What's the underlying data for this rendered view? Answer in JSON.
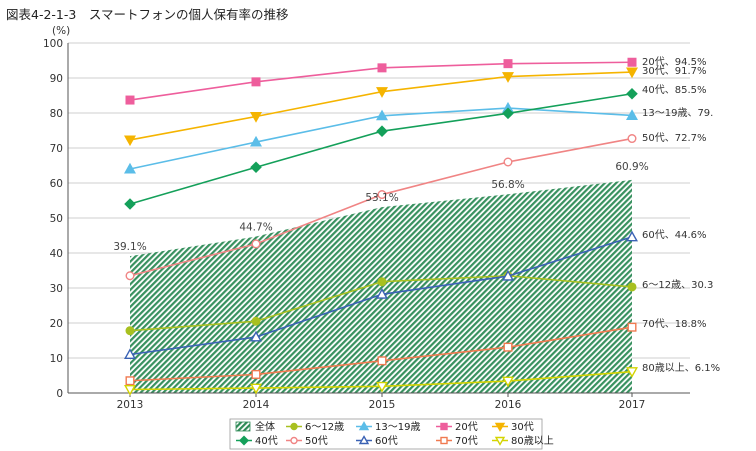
{
  "chart_data": {
    "type": "line",
    "title": "図表4-2-1-3　スマートフォンの個人保有率の推移",
    "ylabel": "(%)",
    "x": [
      "2013",
      "2014",
      "2015",
      "2016",
      "2017"
    ],
    "ylim": [
      0,
      100
    ],
    "yticks": [
      0,
      10,
      20,
      30,
      40,
      50,
      60,
      70,
      80,
      90,
      100
    ],
    "grid": true,
    "legend_position": "bottom",
    "area": {
      "name": "全体",
      "values": [
        39.1,
        44.7,
        53.1,
        56.8,
        60.9
      ],
      "labels": [
        "39.1%",
        "44.7%",
        "53.1%",
        "56.8%",
        "60.9%"
      ],
      "color": "#2e8b57"
    },
    "series": [
      {
        "name": "6～12歳",
        "values": [
          17.8,
          20.5,
          31.8,
          33.5,
          30.3
        ],
        "color": "#a8c020",
        "marker": "circle-filled",
        "end_label": "6～12歳、30.3"
      },
      {
        "name": "13～19歳",
        "values": [
          64.0,
          71.7,
          79.2,
          81.4,
          79.3
        ],
        "color": "#5bbde8",
        "marker": "triangle-filled",
        "end_label": "13～19歳、79."
      },
      {
        "name": "20代",
        "values": [
          83.7,
          88.9,
          92.9,
          94.1,
          94.5
        ],
        "color": "#ee5e9c",
        "marker": "square-filled",
        "end_label": "20代、94.5%"
      },
      {
        "name": "30代",
        "values": [
          72.3,
          79.0,
          86.1,
          90.4,
          91.7
        ],
        "color": "#f5b400",
        "marker": "tridown-filled",
        "end_label": "30代、91.7%"
      },
      {
        "name": "40代",
        "values": [
          54.0,
          64.5,
          74.8,
          79.9,
          85.5
        ],
        "color": "#14a05a",
        "marker": "diamond-filled",
        "end_label": "40代、85.5%"
      },
      {
        "name": "50代",
        "values": [
          33.5,
          42.6,
          56.7,
          66.0,
          72.7
        ],
        "color": "#f08484",
        "marker": "circle-open",
        "end_label": "50代、72.7%"
      },
      {
        "name": "60代",
        "values": [
          11.0,
          16.0,
          28.2,
          33.4,
          44.6
        ],
        "color": "#3a62b4",
        "marker": "triangle-open",
        "end_label": "60代、44.6%"
      },
      {
        "name": "70代",
        "values": [
          3.5,
          5.3,
          9.2,
          13.1,
          18.8
        ],
        "color": "#f07a50",
        "marker": "square-open",
        "end_label": "70代、18.8%"
      },
      {
        "name": "80歳以上",
        "values": [
          1.0,
          1.4,
          1.9,
          3.4,
          6.1
        ],
        "color": "#d4d400",
        "marker": "tridown-open",
        "end_label": "80歳以上、6.1%"
      }
    ]
  }
}
